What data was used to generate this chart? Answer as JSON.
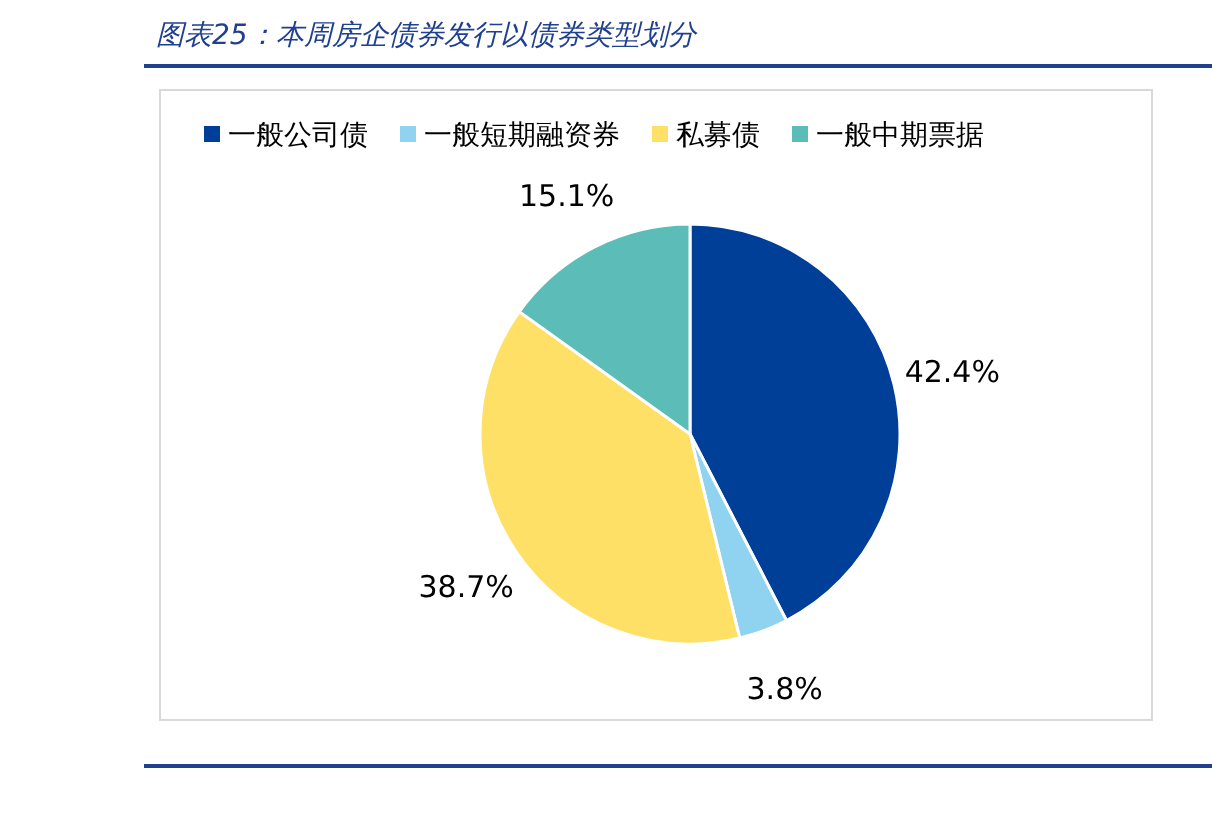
{
  "chart_data": {
    "type": "pie",
    "title": "图表25：本周房企债券发行以债券类型划分",
    "categories": [
      "一般公司债",
      "一般短期融资券",
      "私募债",
      "一般中期票据"
    ],
    "values": [
      42.4,
      3.8,
      38.7,
      15.1
    ],
    "value_labels": [
      "42.4%",
      "3.8%",
      "38.7%",
      "15.1%"
    ],
    "colors": [
      "#003f98",
      "#8fd3f0",
      "#ffe066",
      "#5bbcb8"
    ],
    "legend": "top"
  }
}
